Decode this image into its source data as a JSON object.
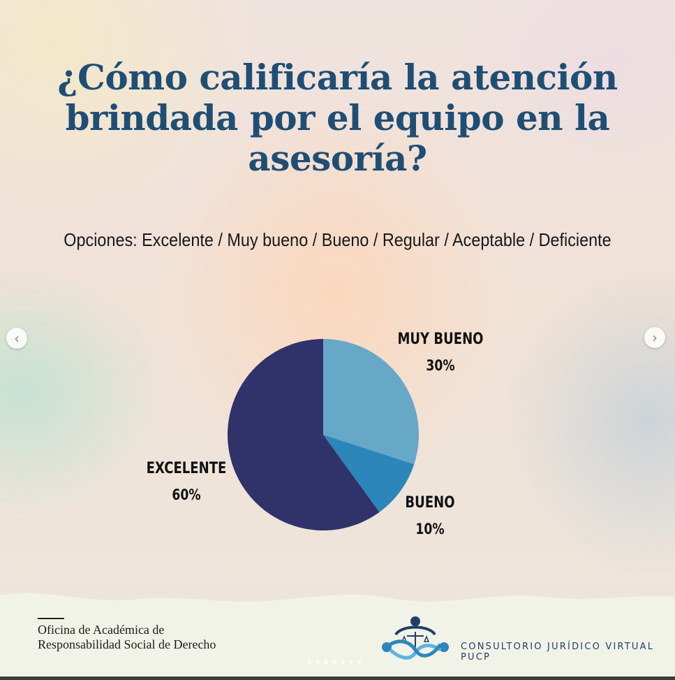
{
  "title": "¿Cómo calificaría la atención brindada por el equipo en la asesoría?",
  "options_text": "Opciones: Excelente / Muy bueno / Bueno / Regular / Aceptable / Deficiente",
  "chart_data": {
    "type": "pie",
    "start": "12 o'clock, clockwise",
    "slices": [
      {
        "label": "MUY BUENO",
        "value": 30,
        "value_text": "30%",
        "color": "#67a7c8"
      },
      {
        "label": "BUENO",
        "value": 10,
        "value_text": "10%",
        "color": "#2c86b9"
      },
      {
        "label": "EXCELENTE",
        "value": 60,
        "value_text": "60%",
        "color": "#30336a"
      }
    ]
  },
  "footer": {
    "office": "Oficina de Académica de Responsabilidad Social de Derecho",
    "brand": "CONSULTORIO JURÍDICO VIRTUAL PUCP"
  },
  "nav": {
    "prev_icon": "chevron-left-icon",
    "next_icon": "chevron-right-icon"
  },
  "carousel": {
    "total": 7,
    "active": 3
  }
}
